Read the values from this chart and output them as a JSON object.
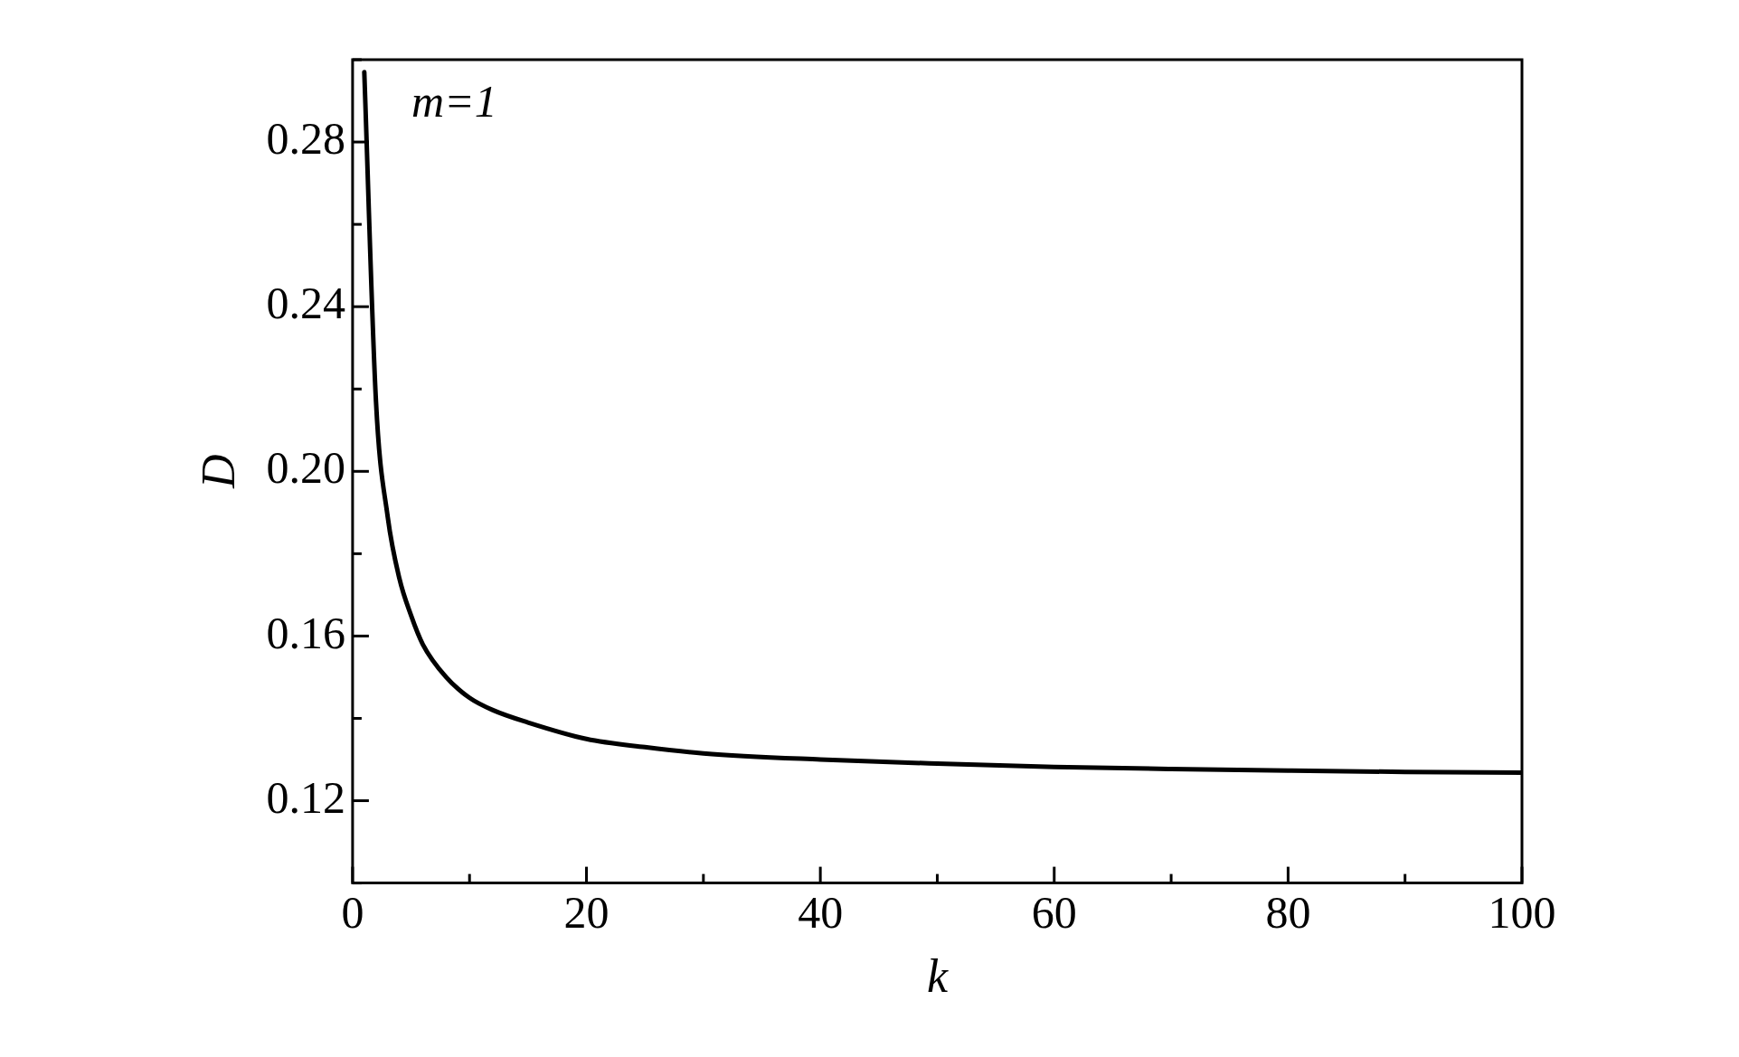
{
  "chart_data": {
    "type": "line",
    "xlabel": "k",
    "ylabel": "D",
    "annotations": [
      "m=1"
    ],
    "x": [
      1,
      2,
      3,
      4,
      5,
      6,
      8,
      10,
      12,
      15,
      20,
      25,
      30,
      40,
      50,
      60,
      70,
      80,
      90,
      100
    ],
    "series": [
      {
        "color": "#000000",
        "values": [
          0.297,
          0.217,
          0.189,
          0.174,
          0.165,
          0.158,
          0.15,
          0.145,
          0.142,
          0.139,
          0.135,
          0.133,
          0.1315,
          0.13,
          0.129,
          0.1282,
          0.1277,
          0.1273,
          0.127,
          0.1268
        ]
      }
    ],
    "xlim": [
      0,
      100
    ],
    "xticks": [
      0,
      {
        "value": 10,
        "label": null
      },
      20,
      {
        "value": 30,
        "label": null
      },
      40,
      {
        "value": 50,
        "label": null
      },
      60,
      {
        "value": 70,
        "label": null
      },
      80,
      {
        "value": 90,
        "label": null
      },
      100
    ],
    "ylim": [
      0.1,
      0.3
    ],
    "yticks": [
      {
        "value": 0.1,
        "label": null
      },
      {
        "value": 0.12,
        "label": "0.12"
      },
      {
        "value": 0.14,
        "label": null
      },
      {
        "value": 0.16,
        "label": "0.16"
      },
      {
        "value": 0.18,
        "label": null
      },
      {
        "value": 0.2,
        "label": "0.20"
      },
      {
        "value": 0.22,
        "label": null
      },
      {
        "value": 0.24,
        "label": "0.24"
      },
      {
        "value": 0.26,
        "label": null
      },
      {
        "value": 0.28,
        "label": "0.28"
      },
      {
        "value": 0.3,
        "label": null
      }
    ],
    "grid": false,
    "legend": false,
    "marker": "none",
    "line_style": "solid"
  }
}
